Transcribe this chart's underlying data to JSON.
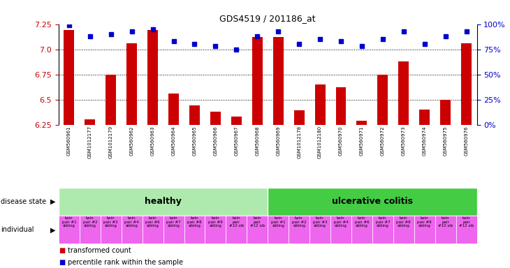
{
  "title": "GDS4519 / 201186_at",
  "samples": [
    "GSM560961",
    "GSM1012177",
    "GSM1012179",
    "GSM560962",
    "GSM560963",
    "GSM560964",
    "GSM560965",
    "GSM560966",
    "GSM560967",
    "GSM560968",
    "GSM560969",
    "GSM1012178",
    "GSM1012180",
    "GSM560970",
    "GSM560971",
    "GSM560972",
    "GSM560973",
    "GSM560974",
    "GSM560975",
    "GSM560976"
  ],
  "bar_values": [
    7.19,
    6.3,
    6.75,
    7.06,
    7.19,
    6.56,
    6.44,
    6.38,
    6.33,
    7.12,
    7.12,
    6.39,
    6.65,
    6.62,
    6.29,
    6.75,
    6.88,
    6.4,
    6.5,
    7.06
  ],
  "percentile_values": [
    99,
    88,
    90,
    93,
    95,
    83,
    80,
    78,
    75,
    88,
    93,
    80,
    85,
    83,
    78,
    85,
    93,
    80,
    88,
    93
  ],
  "ylim_left": [
    6.25,
    7.25
  ],
  "ylim_right": [
    0,
    100
  ],
  "yticks_left": [
    6.25,
    6.5,
    6.75,
    7.0,
    7.25
  ],
  "yticks_right": [
    0,
    25,
    50,
    75,
    100
  ],
  "ytick_labels_right": [
    "0%",
    "25%",
    "50%",
    "75%",
    "100%"
  ],
  "bar_color": "#cc0000",
  "dot_color": "#0000cc",
  "healthy_count": 10,
  "uc_count": 10,
  "healthy_color": "#aeeaae",
  "uc_color": "#44cc44",
  "individual_labels": [
    "twin\npair #1\nsibling",
    "twin\npair #2\nsibling",
    "twin\npair #3\nsibling",
    "twin\npair #4\nsibling",
    "twin\npair #6\nsibling",
    "twin\npair #7\nsibling",
    "twin\npair #8\nsibling",
    "twin\npair #9\nsibling",
    "twin\npair\n#10 sib",
    "twin\npair\n#12 sib",
    "twin\npair #1\nsibling",
    "twin\npair #2\nsibling",
    "twin\npair #3\nsibling",
    "twin\npair #4\nsibling",
    "twin\npair #6\nsibling",
    "twin\npair #7\nsibling",
    "twin\npair #8\nsibling",
    "twin\npair #9\nsibling",
    "twin\npair\n#10 sib",
    "twin\npair\n#12 sib"
  ],
  "individual_color": "#ee66ee",
  "label_color_left": "#cc0000",
  "label_color_right": "#0000cc",
  "grid_color": "#000000",
  "bg_color": "#ffffff",
  "xticklabel_bg": "#cccccc",
  "bar_width": 0.5
}
